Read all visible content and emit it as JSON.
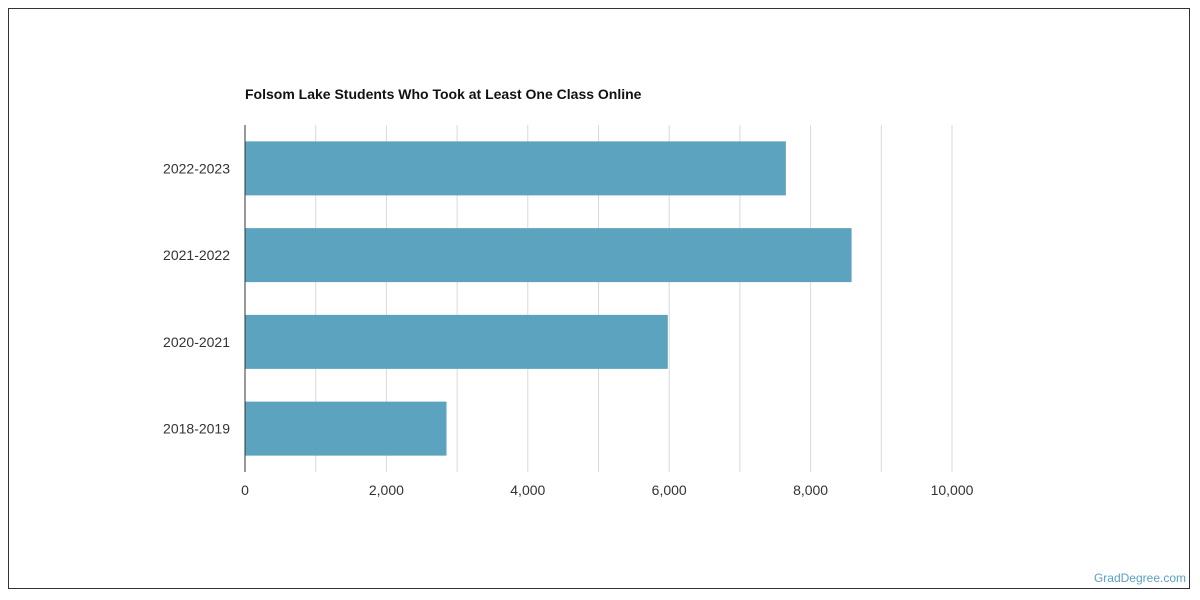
{
  "chart_data": {
    "type": "bar",
    "orientation": "horizontal",
    "title": "Folsom Lake Students Who Took at Least One Class Online",
    "categories": [
      "2022-2023",
      "2021-2022",
      "2020-2021",
      "2018-2019"
    ],
    "values": [
      7650,
      8580,
      5980,
      2850
    ],
    "xlim": [
      0,
      10000
    ],
    "xticks": [
      0,
      2000,
      4000,
      6000,
      8000,
      10000
    ],
    "xtick_labels": [
      "0",
      "2,000",
      "4,000",
      "6,000",
      "8,000",
      "10,000"
    ],
    "grid": true,
    "bar_color": "#5ba3be"
  },
  "watermark": "GradDegree.com"
}
